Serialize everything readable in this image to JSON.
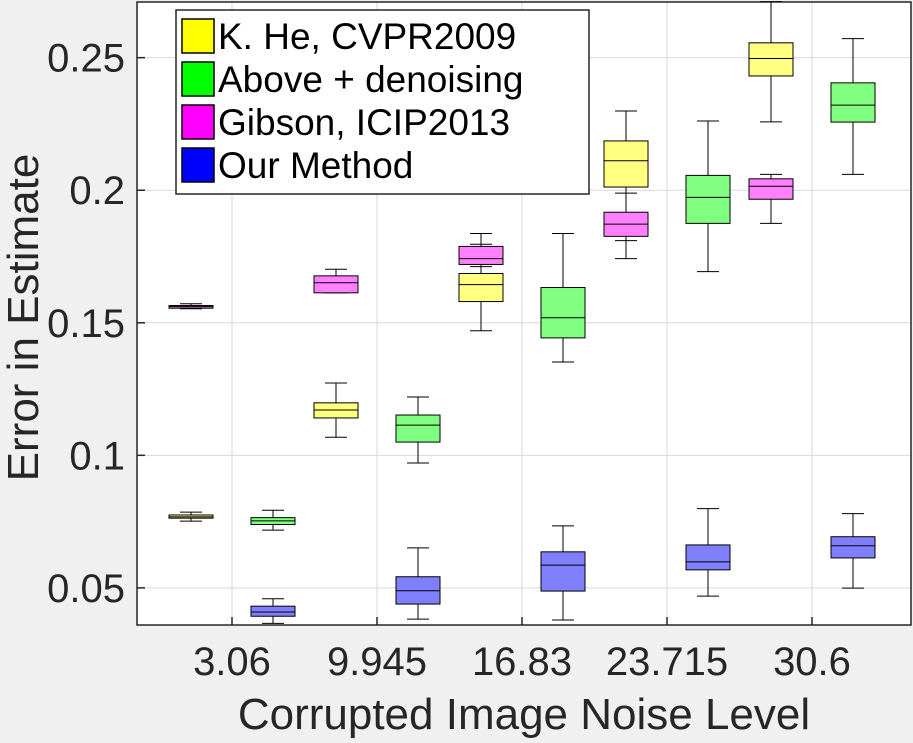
{
  "chart_data": {
    "type": "box",
    "title": "",
    "xlabel": "Corrupted Image Noise Level",
    "ylabel": "Error in Estimate",
    "categories": [
      "3.06",
      "9.945",
      "16.83",
      "23.715",
      "30.6"
    ],
    "ylim": [
      0.036,
      0.271
    ],
    "yticks": [
      "0.05",
      "0.1",
      "0.15",
      "0.2",
      "0.25"
    ],
    "ytick_values": [
      0.05,
      0.1,
      0.15,
      0.2,
      0.25
    ],
    "grid": true,
    "legend_position": "top-left",
    "series": [
      {
        "name": "K. He, CVPR2009",
        "color": "#ffff80",
        "swatch": "#ffff00",
        "boxes": [
          {
            "min": 0.0752,
            "q1": 0.0763,
            "median": 0.0768,
            "q3": 0.0775,
            "max": 0.0786
          },
          {
            "min": 0.1068,
            "q1": 0.1141,
            "median": 0.1171,
            "q3": 0.1198,
            "max": 0.1273
          },
          {
            "min": 0.147,
            "q1": 0.158,
            "median": 0.1644,
            "q3": 0.1686,
            "max": 0.1837
          },
          {
            "min": 0.181,
            "q1": 0.2012,
            "median": 0.2111,
            "q3": 0.2186,
            "max": 0.2299
          },
          {
            "min": 0.2258,
            "q1": 0.2431,
            "median": 0.2497,
            "q3": 0.2556,
            "max": 0.2712
          }
        ]
      },
      {
        "name": "Above + denoising",
        "color": "#80ff80",
        "swatch": "#00ff00",
        "boxes": [
          {
            "min": 0.0718,
            "q1": 0.0739,
            "median": 0.0753,
            "q3": 0.0765,
            "max": 0.0793
          },
          {
            "min": 0.0971,
            "q1": 0.105,
            "median": 0.1114,
            "q3": 0.1152,
            "max": 0.122
          },
          {
            "min": 0.1352,
            "q1": 0.1443,
            "median": 0.1519,
            "q3": 0.1633,
            "max": 0.1837
          },
          {
            "min": 0.1693,
            "q1": 0.1875,
            "median": 0.1973,
            "q3": 0.2056,
            "max": 0.2261
          },
          {
            "min": 0.206,
            "q1": 0.2257,
            "median": 0.2321,
            "q3": 0.2405,
            "max": 0.2572
          }
        ]
      },
      {
        "name": "Gibson, ICIP2013",
        "color": "#ff80ff",
        "swatch": "#ff00ff",
        "boxes": [
          {
            "min": 0.1553,
            "q1": 0.1555,
            "median": 0.1561,
            "q3": 0.1565,
            "max": 0.1572
          },
          {
            "min": 0.1613,
            "q1": 0.1613,
            "median": 0.1651,
            "q3": 0.1677,
            "max": 0.1702
          },
          {
            "min": 0.1712,
            "q1": 0.172,
            "median": 0.1742,
            "q3": 0.1788,
            "max": 0.1796
          },
          {
            "min": 0.1742,
            "q1": 0.1826,
            "median": 0.1872,
            "q3": 0.1917,
            "max": 0.1989
          },
          {
            "min": 0.1875,
            "q1": 0.1966,
            "median": 0.2015,
            "q3": 0.2043,
            "max": 0.206
          }
        ]
      },
      {
        "name": "Our Method",
        "color": "#8080ff",
        "swatch": "#0000ff",
        "boxes": [
          {
            "min": 0.0366,
            "q1": 0.0393,
            "median": 0.0409,
            "q3": 0.0431,
            "max": 0.0459
          },
          {
            "min": 0.0382,
            "q1": 0.0439,
            "median": 0.0489,
            "q3": 0.0542,
            "max": 0.0651
          },
          {
            "min": 0.0379,
            "q1": 0.0488,
            "median": 0.0586,
            "q3": 0.0636,
            "max": 0.0734
          },
          {
            "min": 0.0469,
            "q1": 0.0568,
            "median": 0.0598,
            "q3": 0.0662,
            "max": 0.0799
          },
          {
            "min": 0.0499,
            "q1": 0.0613,
            "median": 0.0659,
            "q3": 0.0693,
            "max": 0.078
          }
        ]
      }
    ]
  }
}
